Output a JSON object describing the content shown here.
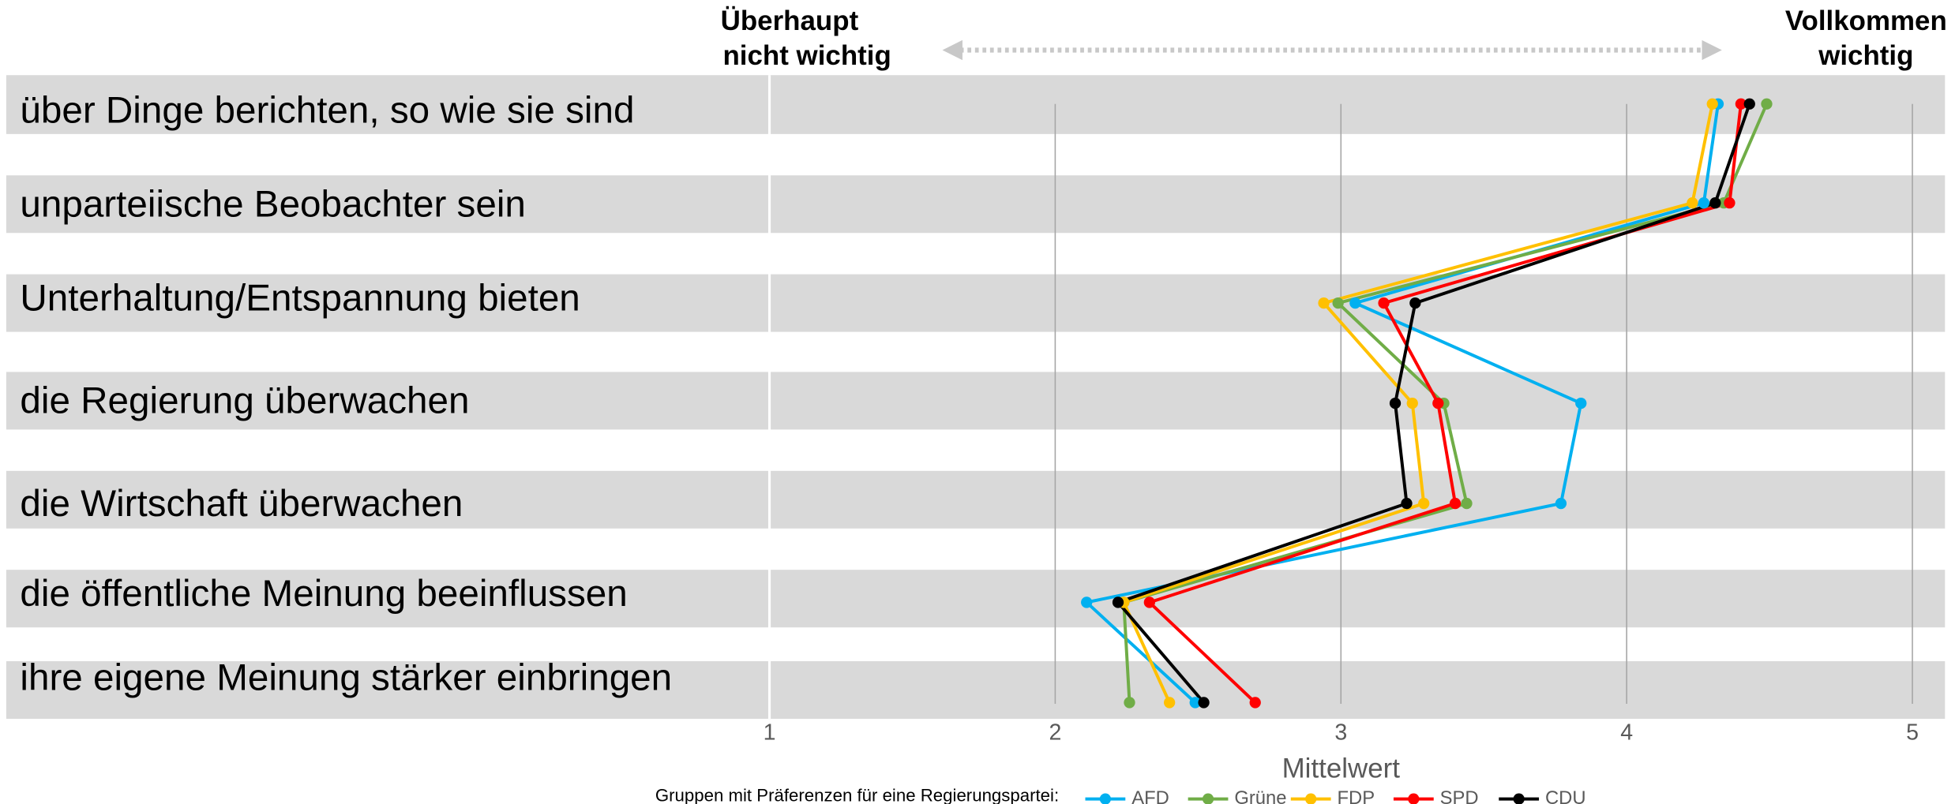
{
  "chart_data": {
    "type": "line",
    "left_label": [
      "Überhaupt",
      "nicht wichtig"
    ],
    "right_label": [
      "Vollkommen",
      "wichtig"
    ],
    "xlabel": "Mittelwert",
    "legend_title": "Gruppen mit Präferenzen für eine Regierungspartei:",
    "categories": [
      "über Dinge berichten, so wie sie sind",
      "unparteiische Beobachter sein",
      "Unterhaltung/Entspannung bieten",
      "die Regierung überwachen",
      "die Wirtschaft überwachen",
      "die öffentliche Meinung beeinflussen",
      "ihre eigene Meinung stärker einbringen"
    ],
    "xlim": [
      1,
      5
    ],
    "xticks": [
      1,
      2,
      3,
      4,
      5
    ],
    "grid": true,
    "legend": "bottom",
    "series": [
      {
        "name": "AFD",
        "color": "#00b0f0",
        "values": [
          4.32,
          4.27,
          3.05,
          3.84,
          3.77,
          2.11,
          2.49
        ]
      },
      {
        "name": "Grüne",
        "color": "#70ad47",
        "values": [
          4.49,
          4.34,
          2.99,
          3.36,
          3.44,
          2.24,
          2.26
        ]
      },
      {
        "name": "FDP",
        "color": "#ffc000",
        "values": [
          4.3,
          4.23,
          2.94,
          3.25,
          3.29,
          2.24,
          2.4
        ]
      },
      {
        "name": "SPD",
        "color": "#ff0000",
        "values": [
          4.4,
          4.36,
          3.15,
          3.34,
          3.4,
          2.33,
          2.7
        ]
      },
      {
        "name": "CDU",
        "color": "#000000",
        "values": [
          4.43,
          4.31,
          3.26,
          3.19,
          3.23,
          2.22,
          2.52
        ]
      }
    ]
  }
}
